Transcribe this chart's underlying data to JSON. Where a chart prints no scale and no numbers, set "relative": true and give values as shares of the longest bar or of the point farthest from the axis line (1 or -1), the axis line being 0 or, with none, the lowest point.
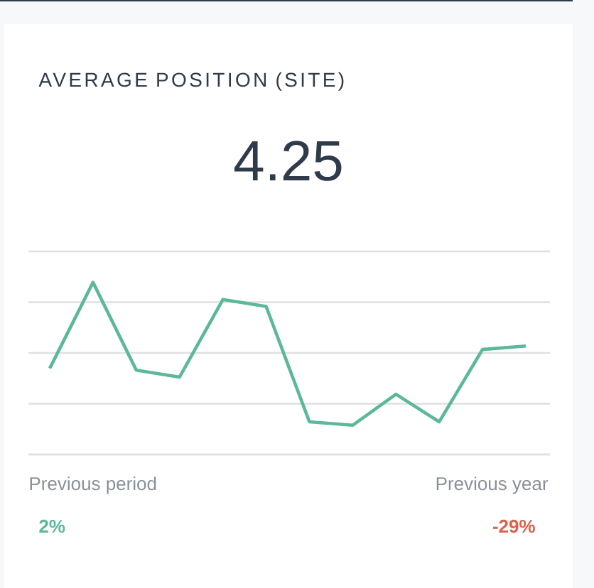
{
  "chart_data": {
    "type": "line",
    "title": "AVERAGE POSITION (SITE)",
    "subtitle": "4.25",
    "categories": [
      null,
      null,
      null,
      null,
      null,
      null,
      null,
      null,
      null,
      null,
      null,
      null
    ],
    "series": [
      {
        "color": "#5bb89a",
        "values": [
          0.5,
          1,
          0.49,
          0.45,
          0.9,
          0.86,
          0.19,
          0.17,
          0.35,
          0.19,
          0.61,
          0.63
        ]
      }
    ],
    "relative": true,
    "grid": "y",
    "annotations": [
      "Previous period",
      "2%",
      "Previous year",
      "-29%"
    ]
  }
}
